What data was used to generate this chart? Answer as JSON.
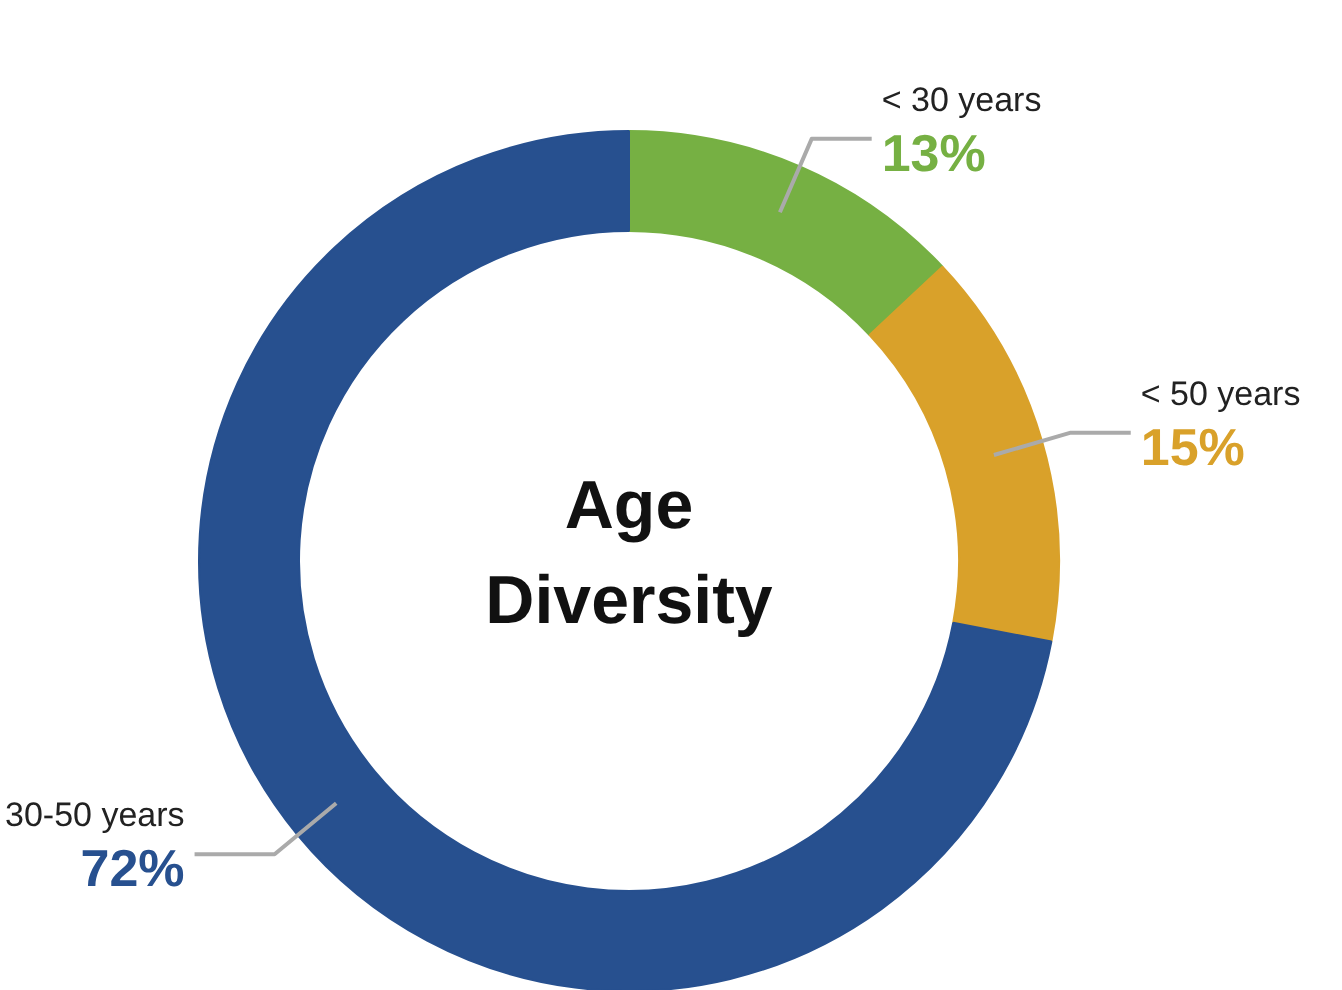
{
  "chart_data": {
    "type": "donut",
    "title": "Age Diversity",
    "categories": [
      "< 30 years",
      "< 50 years",
      "30-50 years"
    ],
    "values": [
      13,
      15,
      72
    ],
    "value_labels": [
      "13%",
      "15%",
      "72%"
    ],
    "colors": [
      "#76b043",
      "#d9a12a",
      "#27508f"
    ]
  }
}
